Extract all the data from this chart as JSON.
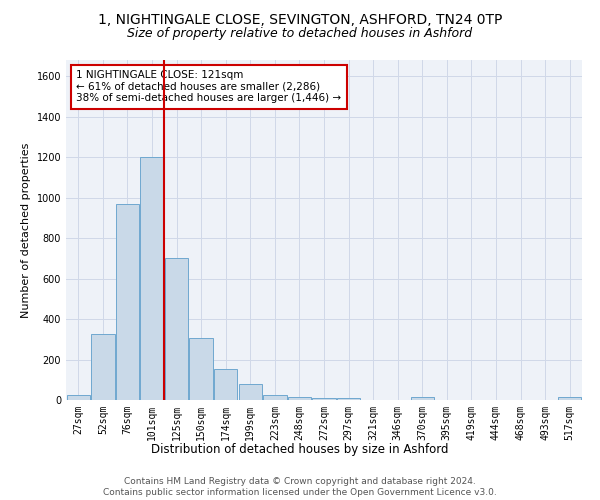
{
  "title1": "1, NIGHTINGALE CLOSE, SEVINGTON, ASHFORD, TN24 0TP",
  "title2": "Size of property relative to detached houses in Ashford",
  "xlabel": "Distribution of detached houses by size in Ashford",
  "ylabel": "Number of detached properties",
  "bar_labels": [
    "27sqm",
    "52sqm",
    "76sqm",
    "101sqm",
    "125sqm",
    "150sqm",
    "174sqm",
    "199sqm",
    "223sqm",
    "248sqm",
    "272sqm",
    "297sqm",
    "321sqm",
    "346sqm",
    "370sqm",
    "395sqm",
    "419sqm",
    "444sqm",
    "468sqm",
    "493sqm",
    "517sqm"
  ],
  "bar_values": [
    25,
    325,
    970,
    1200,
    700,
    305,
    155,
    80,
    25,
    15,
    10,
    10,
    0,
    0,
    15,
    0,
    0,
    0,
    0,
    0,
    15
  ],
  "bar_color": "#c9d9e8",
  "bar_edge_color": "#6fa8d0",
  "vline_pos": 3.5,
  "vline_color": "#cc0000",
  "annotation_text": "1 NIGHTINGALE CLOSE: 121sqm\n← 61% of detached houses are smaller (2,286)\n38% of semi-detached houses are larger (1,446) →",
  "annotation_box_color": "#ffffff",
  "annotation_box_edge": "#cc0000",
  "ylim": [
    0,
    1680
  ],
  "yticks": [
    0,
    200,
    400,
    600,
    800,
    1000,
    1200,
    1400,
    1600
  ],
  "grid_color": "#d0d8e8",
  "background_color": "#eef2f8",
  "footer_text": "Contains HM Land Registry data © Crown copyright and database right 2024.\nContains public sector information licensed under the Open Government Licence v3.0.",
  "title1_fontsize": 10,
  "title2_fontsize": 9,
  "xlabel_fontsize": 8.5,
  "ylabel_fontsize": 8,
  "tick_fontsize": 7,
  "annotation_fontsize": 7.5,
  "footer_fontsize": 6.5
}
